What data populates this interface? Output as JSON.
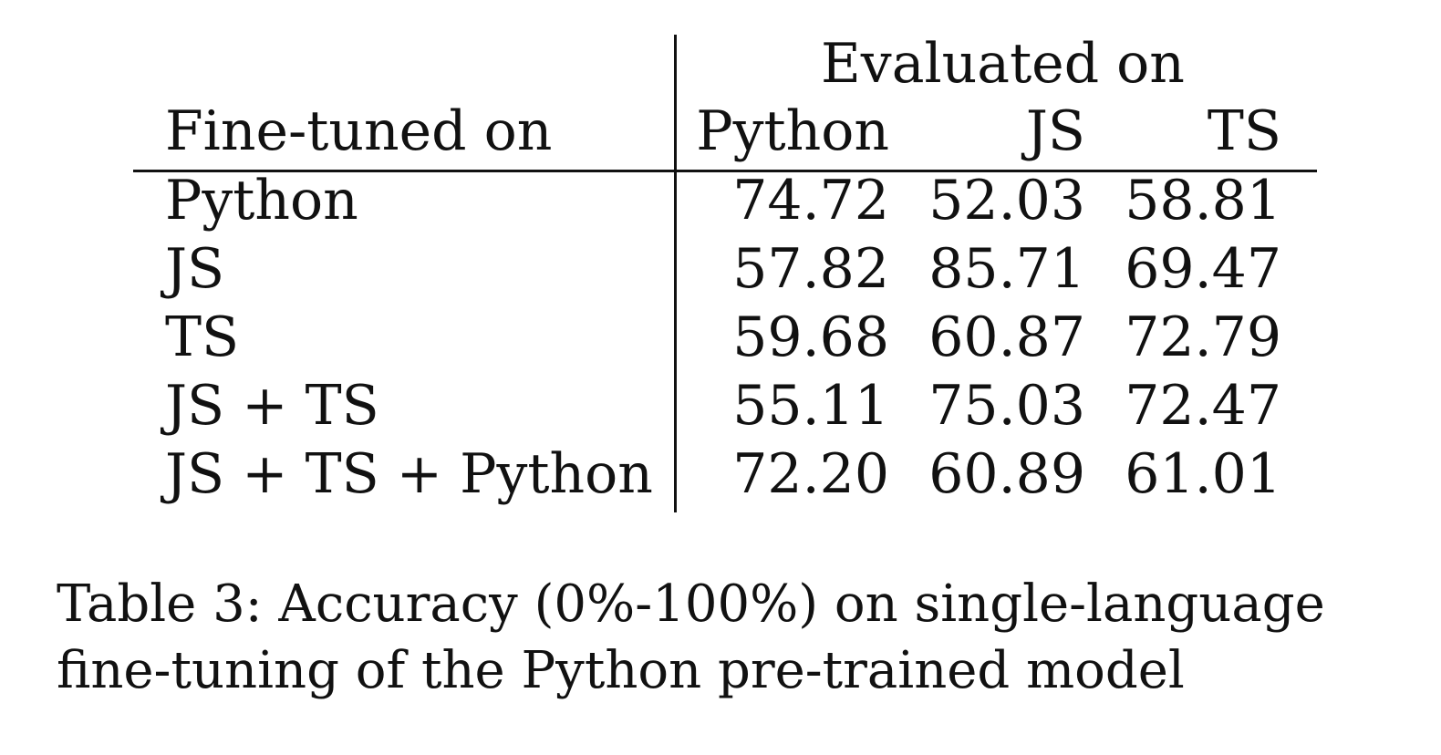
{
  "table": {
    "group_header": "Evaluated on",
    "row_header": "Fine-tuned on",
    "columns": [
      "Python",
      "JS",
      "TS"
    ],
    "rows": [
      {
        "label": "Python",
        "values": [
          "74.72",
          "52.03",
          "58.81"
        ]
      },
      {
        "label": "JS",
        "values": [
          "57.82",
          "85.71",
          "69.47"
        ]
      },
      {
        "label": "TS",
        "values": [
          "59.68",
          "60.87",
          "72.79"
        ]
      },
      {
        "label": "JS + TS",
        "values": [
          "55.11",
          "75.03",
          "72.47"
        ]
      },
      {
        "label": "JS + TS + Python",
        "values": [
          "72.20",
          "60.89",
          "61.01"
        ]
      }
    ]
  },
  "caption": "Table 3: Accuracy (0%-100%) on single-language fine-tuning of the Python pre-trained model"
}
